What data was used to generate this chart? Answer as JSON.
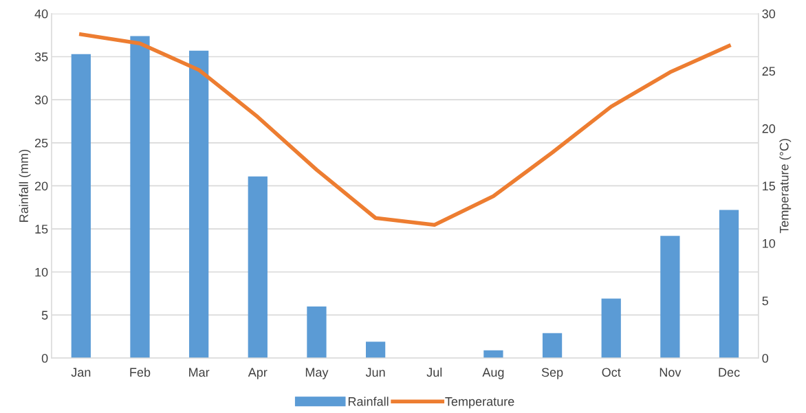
{
  "chart_data": {
    "type": "bar",
    "categories": [
      "Jan",
      "Feb",
      "Mar",
      "Apr",
      "May",
      "Jun",
      "Jul",
      "Aug",
      "Sep",
      "Oct",
      "Nov",
      "Dec"
    ],
    "series": [
      {
        "name": "Rainfall",
        "color": "#5b9bd5",
        "values": [
          35.3,
          37.4,
          35.7,
          21.1,
          6.0,
          1.9,
          0,
          0.9,
          2.9,
          6.9,
          14.2,
          17.2
        ]
      },
      {
        "name": "Temperature",
        "type": "line",
        "axis": "y2",
        "color": "#ed7d31",
        "values": [
          28.2,
          27.4,
          25.1,
          21.0,
          16.4,
          12.2,
          11.6,
          14.1,
          17.9,
          21.9,
          24.9,
          27.2
        ]
      }
    ],
    "ylabel": "Rainfall (mm)",
    "y2label": "Temperature (°C)",
    "ylim": [
      0,
      40
    ],
    "yticks": [
      0,
      5,
      10,
      15,
      20,
      25,
      30,
      35,
      40
    ],
    "y2lim": [
      0,
      30
    ],
    "y2ticks": [
      0,
      5,
      10,
      15,
      20,
      25,
      30
    ],
    "grid": "y",
    "legend": "bottom",
    "marker": "none",
    "line_style": "solid"
  }
}
